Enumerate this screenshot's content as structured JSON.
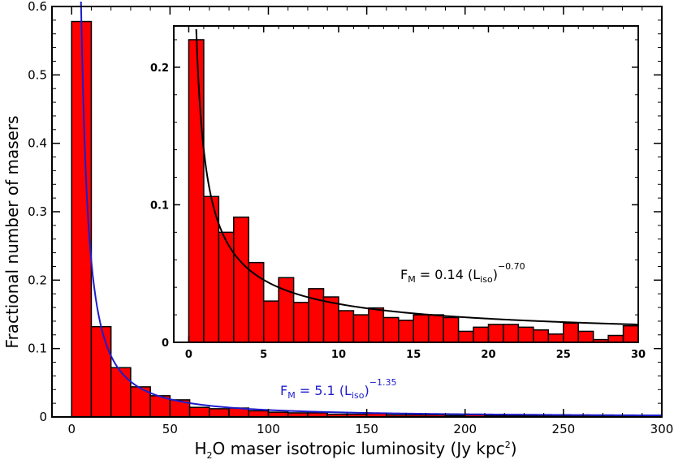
{
  "chart_data": [
    {
      "type": "bar",
      "role": "main",
      "xlabel": {
        "prefix": "H",
        "sub": "2",
        "middle": "O maser isotropic luminosity (Jy kpc",
        "sup": "2",
        "suffix": ")"
      },
      "ylabel": "Fractional number of masers",
      "xlim": [
        -10,
        300
      ],
      "ylim": [
        0,
        0.6
      ],
      "xticks": [
        0,
        50,
        100,
        150,
        200,
        250,
        300
      ],
      "yticks": [
        0,
        0.1,
        0.2,
        0.3,
        0.4,
        0.5,
        0.6
      ],
      "ytick_labels": [
        "0",
        "0.1",
        "0.2",
        "0.3",
        "0.4",
        "0.5",
        "0.6"
      ],
      "bin_width": 10,
      "bin_starts": [
        0,
        10,
        20,
        30,
        40,
        50,
        60,
        70,
        80,
        90,
        100,
        110,
        120,
        130,
        140,
        150,
        160,
        170,
        180,
        190,
        200,
        210,
        220,
        230,
        240,
        250,
        260,
        270,
        280,
        290
      ],
      "values": [
        0.578,
        0.132,
        0.072,
        0.044,
        0.031,
        0.025,
        0.014,
        0.012,
        0.013,
        0.009,
        0.007,
        0.006,
        0.006,
        0.004,
        0.004,
        0.005,
        0.003,
        0.003,
        0.003,
        0.002,
        0.003,
        0.002,
        0.002,
        0.002,
        0.002,
        0.002,
        0.002,
        0.001,
        0.002,
        0.001
      ],
      "bar_color": "#ff0000",
      "fit": {
        "label_left": "F",
        "label_sub": "M",
        "label_mid": " =  5.1 (L",
        "label_sub2": "iso",
        "label_close": ")",
        "label_exp": "−1.35",
        "coefficient": 5.1,
        "exponent": -1.35,
        "color": "#1d1dcc"
      }
    },
    {
      "type": "bar",
      "role": "inset",
      "xlim": [
        -1,
        30
      ],
      "ylim": [
        0,
        0.23
      ],
      "xticks": [
        0,
        5,
        10,
        15,
        20,
        25,
        30
      ],
      "yticks": [
        0,
        0.1,
        0.2
      ],
      "ytick_labels": [
        "0",
        "0.1",
        "0.2"
      ],
      "bin_width": 1,
      "bin_starts": [
        0,
        1,
        2,
        3,
        4,
        5,
        6,
        7,
        8,
        9,
        10,
        11,
        12,
        13,
        14,
        15,
        16,
        17,
        18,
        19,
        20,
        21,
        22,
        23,
        24,
        25,
        26,
        27,
        28,
        29
      ],
      "values": [
        0.22,
        0.106,
        0.08,
        0.091,
        0.058,
        0.03,
        0.047,
        0.029,
        0.039,
        0.033,
        0.023,
        0.02,
        0.025,
        0.018,
        0.016,
        0.02,
        0.02,
        0.018,
        0.008,
        0.011,
        0.013,
        0.013,
        0.011,
        0.009,
        0.006,
        0.014,
        0.008,
        0.002,
        0.005,
        0.012
      ],
      "bar_color": "#ff0000",
      "fit": {
        "label_left": "F",
        "label_sub": "M",
        "label_mid": " =  0.14 (L",
        "label_sub2": "iso",
        "label_close": ")",
        "label_exp": "−0.70",
        "coefficient": 0.14,
        "exponent": -0.7,
        "color": "#000000"
      }
    }
  ]
}
